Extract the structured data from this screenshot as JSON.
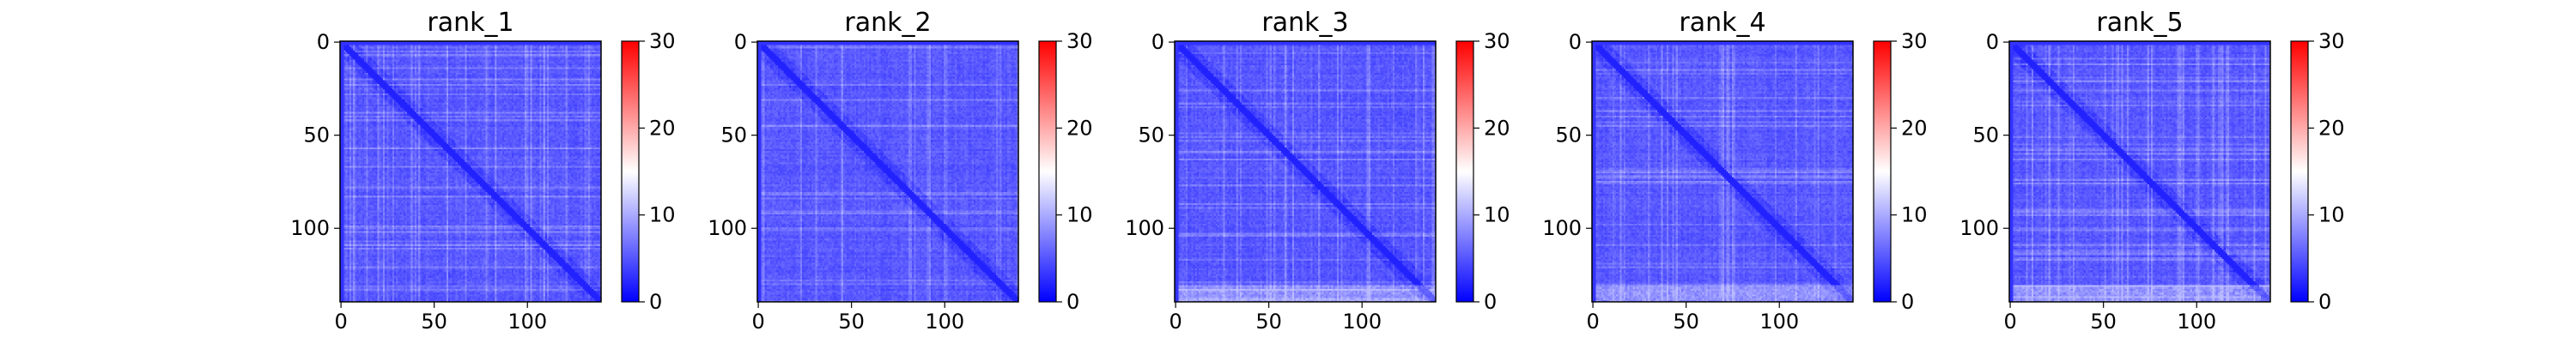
{
  "chart_data": [
    {
      "type": "heatmap",
      "title": "rank_1",
      "x_ticks": [
        0,
        50,
        100
      ],
      "y_ticks": [
        0,
        50,
        100
      ],
      "n": 140,
      "colorbar": {
        "min": 0,
        "max": 30,
        "ticks": [
          0,
          10,
          20,
          30
        ]
      },
      "colormap": [
        "#0000ff",
        "#ffffff",
        "#ff0000"
      ],
      "color_midpoint": 15,
      "cell_range": [
        2,
        10
      ],
      "grid": false
    },
    {
      "type": "heatmap",
      "title": "rank_2",
      "x_ticks": [
        0,
        50,
        100
      ],
      "y_ticks": [
        0,
        50,
        100
      ],
      "n": 140,
      "colorbar": {
        "min": 0,
        "max": 30,
        "ticks": [
          0,
          10,
          20,
          30
        ]
      },
      "colormap": [
        "#0000ff",
        "#ffffff",
        "#ff0000"
      ],
      "color_midpoint": 15,
      "cell_range": [
        2,
        10
      ],
      "grid": false
    },
    {
      "type": "heatmap",
      "title": "rank_3",
      "x_ticks": [
        0,
        50,
        100
      ],
      "y_ticks": [
        0,
        50,
        100
      ],
      "n": 140,
      "colorbar": {
        "min": 0,
        "max": 30,
        "ticks": [
          0,
          10,
          20,
          30
        ]
      },
      "colormap": [
        "#0000ff",
        "#ffffff",
        "#ff0000"
      ],
      "color_midpoint": 15,
      "cell_range": [
        2,
        11
      ],
      "grid": false
    },
    {
      "type": "heatmap",
      "title": "rank_4",
      "x_ticks": [
        0,
        50,
        100
      ],
      "y_ticks": [
        0,
        50,
        100
      ],
      "n": 140,
      "colorbar": {
        "min": 0,
        "max": 30,
        "ticks": [
          0,
          10,
          20,
          30
        ]
      },
      "colormap": [
        "#0000ff",
        "#ffffff",
        "#ff0000"
      ],
      "color_midpoint": 15,
      "cell_range": [
        2,
        11
      ],
      "grid": false
    },
    {
      "type": "heatmap",
      "title": "rank_5",
      "x_ticks": [
        0,
        50,
        100
      ],
      "y_ticks": [
        0,
        50,
        100
      ],
      "n": 140,
      "colorbar": {
        "min": 0,
        "max": 30,
        "ticks": [
          0,
          10,
          20,
          30
        ]
      },
      "colormap": [
        "#0000ff",
        "#ffffff",
        "#ff0000"
      ],
      "color_midpoint": 15,
      "cell_range": [
        2,
        11
      ],
      "grid": false
    }
  ]
}
